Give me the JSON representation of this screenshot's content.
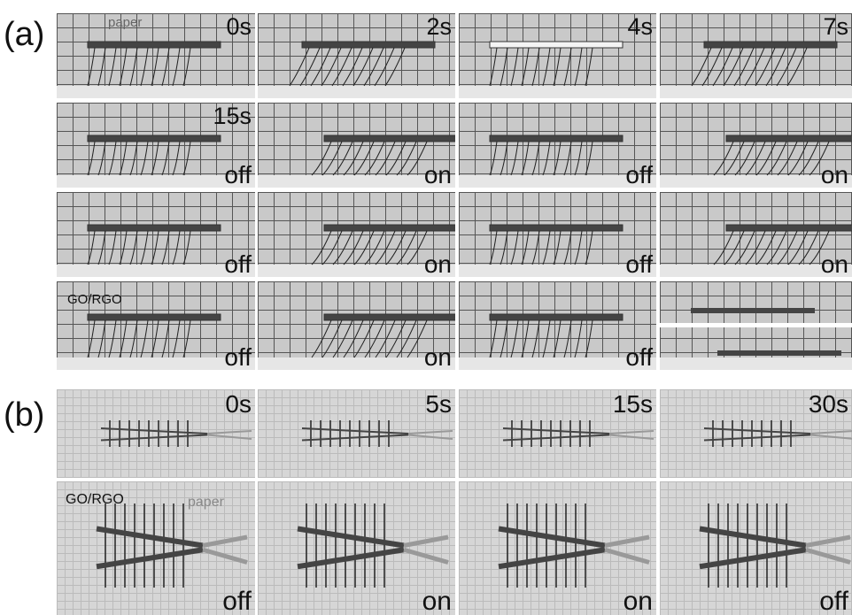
{
  "panel_a": {
    "label": "(a)",
    "annotations": {
      "paper": "paper",
      "go_rgo": "GO/RGO"
    },
    "tiles": [
      {
        "time": "0s"
      },
      {
        "time": "2s"
      },
      {
        "time": "4s"
      },
      {
        "time": "7s"
      },
      {
        "time": "15s",
        "state": "off"
      },
      {
        "state": "on"
      },
      {
        "state": "off"
      },
      {
        "state": "on"
      },
      {
        "state": "off"
      },
      {
        "state": "on"
      },
      {
        "state": "off"
      },
      {
        "state": "on"
      },
      {
        "state": "off"
      },
      {
        "state": "on"
      },
      {
        "state": "off"
      },
      {}
    ]
  },
  "panel_b": {
    "label": "(b)",
    "annotations": {
      "go_rgo": "GO/RGO",
      "paper": "paper"
    },
    "tiles": [
      {
        "time": "0s"
      },
      {
        "time": "5s"
      },
      {
        "time": "15s"
      },
      {
        "time": "30s"
      },
      {
        "state": "off"
      },
      {
        "state": "on"
      },
      {
        "state": "on"
      },
      {
        "state": "off"
      }
    ]
  }
}
